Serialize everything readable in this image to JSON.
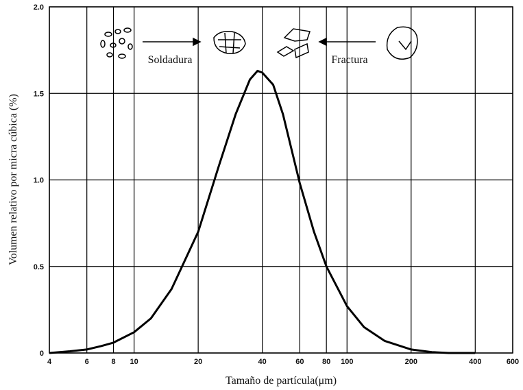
{
  "chart_data": {
    "type": "line",
    "x": [
      4,
      5,
      6,
      7,
      8,
      10,
      12,
      15,
      20,
      25,
      30,
      35,
      38,
      40,
      45,
      50,
      60,
      70,
      80,
      100,
      120,
      150,
      200,
      250,
      300,
      400
    ],
    "values": [
      0.0,
      0.01,
      0.02,
      0.04,
      0.06,
      0.12,
      0.2,
      0.37,
      0.7,
      1.08,
      1.38,
      1.58,
      1.63,
      1.62,
      1.55,
      1.38,
      0.98,
      0.7,
      0.5,
      0.27,
      0.15,
      0.07,
      0.02,
      0.005,
      0.0,
      0.0
    ],
    "color": "#000000",
    "xlabel": "Tamaño de partícula(μm)",
    "ylabel": "Volumen relativo por micra cúbica (%)",
    "xscale": "log",
    "xlim": [
      4,
      600
    ],
    "xticks": [
      4,
      6,
      8,
      10,
      20,
      40,
      60,
      80,
      100,
      200,
      400,
      600
    ],
    "ylim": [
      0,
      2
    ],
    "yticks": [
      0,
      0.5,
      {
        "value": 1,
        "label": "1.0"
      },
      1.5,
      {
        "value": 2,
        "label": "2.0"
      }
    ],
    "grid": true,
    "annotations": [
      "Soldadura",
      "Fractura"
    ]
  }
}
